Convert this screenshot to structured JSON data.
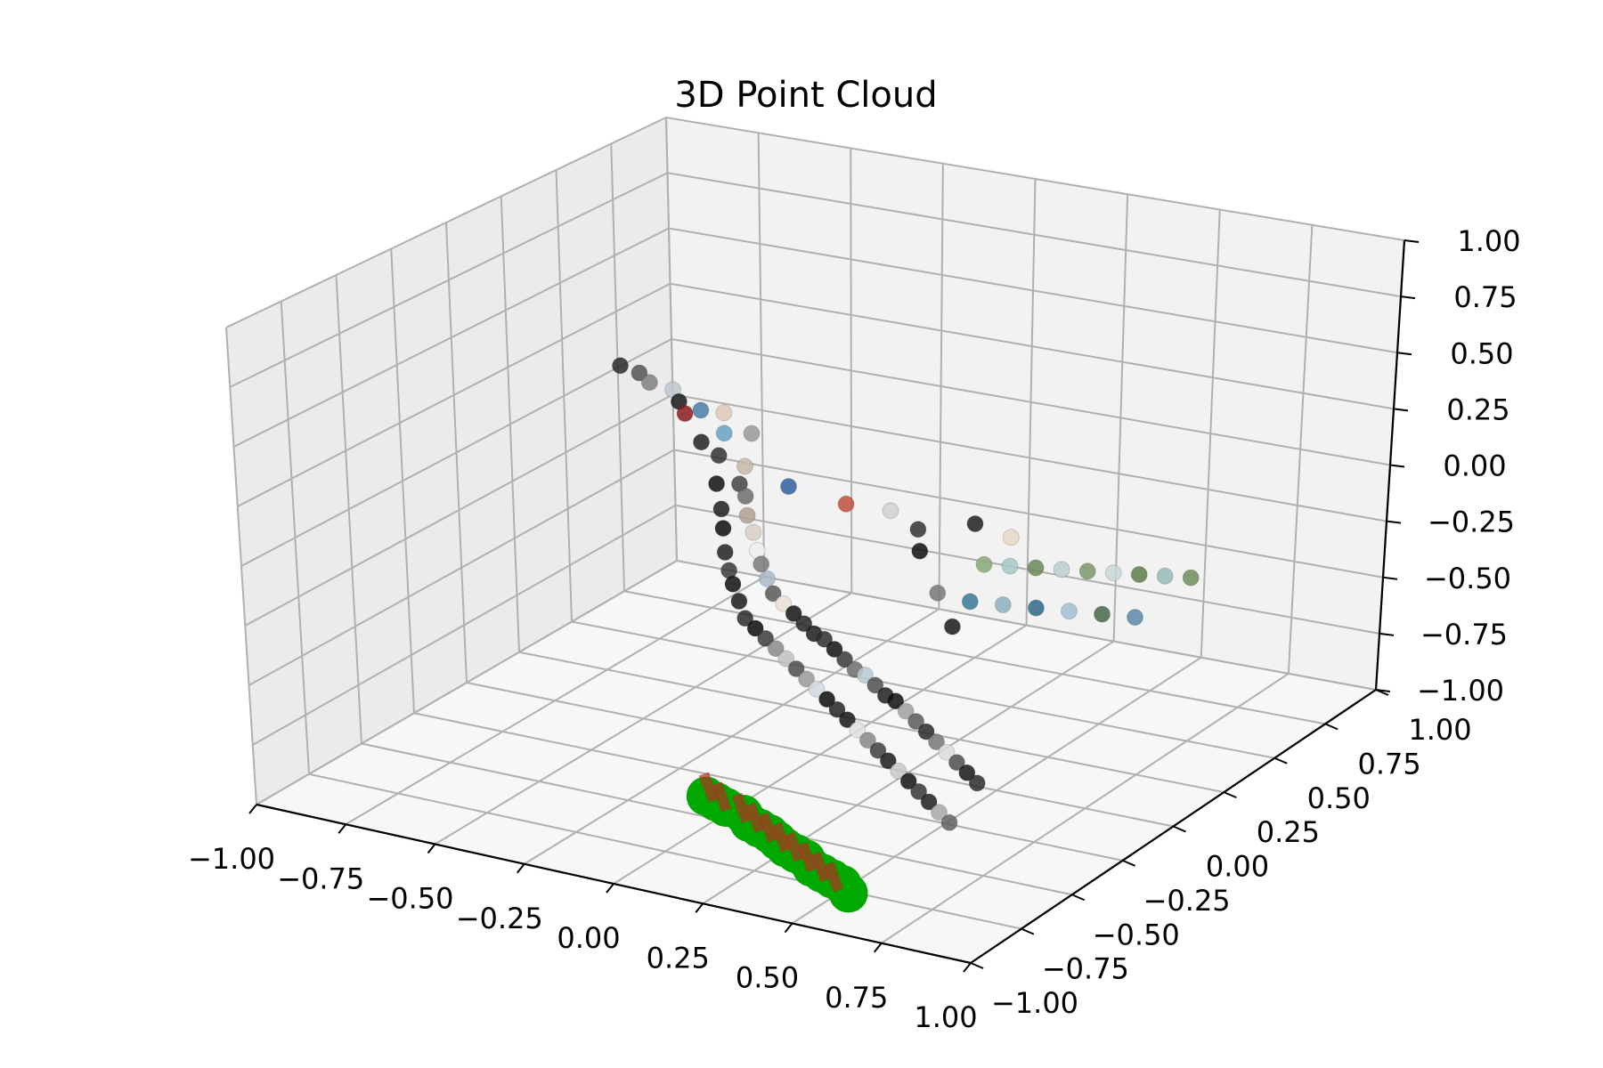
{
  "chart_data": {
    "type": "scatter",
    "projection": "3d",
    "title": "3D Point Cloud",
    "xlim": [
      -1.0,
      1.0
    ],
    "ylim": [
      -1.0,
      1.0
    ],
    "zlim": [
      -1.0,
      1.0
    ],
    "x_ticks": [
      "−1.00",
      "−0.75",
      "−0.50",
      "−0.25",
      "0.00",
      "0.25",
      "0.50",
      "0.75",
      "1.00"
    ],
    "y_ticks": [
      "−1.00",
      "−0.75",
      "−0.50",
      "−0.25",
      "0.00",
      "0.25",
      "0.50",
      "0.75",
      "1.00"
    ],
    "z_ticks": [
      "−1.00",
      "−0.75",
      "−0.50",
      "−0.25",
      "0.00",
      "0.25",
      "0.50",
      "0.75",
      "1.00"
    ],
    "grid": true,
    "colors": {
      "pane_left": "#ebebeb",
      "pane_back": "#f2f2f2",
      "pane_floor": "#f7f7f7",
      "grid": "#b0b0b0",
      "green_markers": "#00a800",
      "red_segments": "#b03020"
    },
    "series": [
      {
        "kind": "point-cloud",
        "points": [
          [
            -0.78,
            0.4,
            0.25,
            "#2b2b2b"
          ],
          [
            -0.74,
            0.42,
            0.22,
            "#555555"
          ],
          [
            -0.7,
            0.4,
            0.2,
            "#808080"
          ],
          [
            -0.66,
            0.44,
            0.16,
            "#c0c8d0"
          ],
          [
            -0.62,
            0.4,
            0.14,
            "#1a1a1a"
          ],
          [
            -0.58,
            0.36,
            0.12,
            "#8c1c1c"
          ],
          [
            -0.56,
            0.4,
            0.12,
            "#4a7ea8"
          ],
          [
            -0.52,
            0.44,
            0.1,
            "#e0c8b8"
          ],
          [
            -0.5,
            0.3,
            0.05,
            "#222222"
          ],
          [
            -0.46,
            0.34,
            0.08,
            "#6aa0c8"
          ],
          [
            -0.44,
            0.28,
            0.02,
            "#333333"
          ],
          [
            -0.42,
            0.4,
            0.06,
            "#999999"
          ],
          [
            -0.4,
            0.2,
            -0.05,
            "#111111"
          ],
          [
            -0.38,
            0.3,
            -0.02,
            "#c8b8a8"
          ],
          [
            -0.36,
            0.24,
            -0.06,
            "#444444"
          ],
          [
            -0.34,
            0.12,
            -0.1,
            "#1e1e1e"
          ],
          [
            -0.32,
            0.2,
            -0.08,
            "#6e6e6e"
          ],
          [
            -0.3,
            0.06,
            -0.14,
            "#0e0e0e"
          ],
          [
            -0.28,
            0.14,
            -0.12,
            "#b0a090"
          ],
          [
            -0.26,
            0.0,
            -0.2,
            "#222222"
          ],
          [
            -0.24,
            0.1,
            -0.16,
            "#d8d0c8"
          ],
          [
            -0.22,
            -0.05,
            -0.24,
            "#3a3a3a"
          ],
          [
            -0.2,
            0.05,
            -0.2,
            "#f0f0f0"
          ],
          [
            -0.18,
            -0.1,
            -0.26,
            "#101010"
          ],
          [
            -0.16,
            0.0,
            -0.22,
            "#7a7a7a"
          ],
          [
            -0.14,
            -0.14,
            -0.3,
            "#1a1a1a"
          ],
          [
            -0.12,
            -0.04,
            -0.25,
            "#a8b8c8"
          ],
          [
            -0.1,
            -0.18,
            -0.34,
            "#2a2a2a"
          ],
          [
            -0.08,
            -0.08,
            -0.28,
            "#585858"
          ],
          [
            -0.06,
            -0.2,
            -0.36,
            "#0a0a0a"
          ],
          [
            -0.04,
            -0.1,
            -0.3,
            "#e8e0d8"
          ],
          [
            -0.02,
            -0.22,
            -0.38,
            "#3c3c3c"
          ],
          [
            0.0,
            -0.12,
            -0.32,
            "#141414"
          ],
          [
            0.02,
            -0.24,
            -0.4,
            "#8a8a8a"
          ],
          [
            0.04,
            -0.14,
            -0.34,
            "#262626"
          ],
          [
            0.06,
            -0.26,
            -0.42,
            "#c0c0c0"
          ],
          [
            0.08,
            -0.16,
            -0.36,
            "#1c1c1c"
          ],
          [
            0.1,
            -0.28,
            -0.44,
            "#4c4c4c"
          ],
          [
            0.12,
            -0.18,
            -0.36,
            "#2e2e2e"
          ],
          [
            0.14,
            -0.3,
            -0.46,
            "#9a9a9a"
          ],
          [
            0.16,
            -0.2,
            -0.38,
            "#121212"
          ],
          [
            0.18,
            -0.32,
            -0.48,
            "#d0d8e0"
          ],
          [
            0.2,
            -0.22,
            -0.4,
            "#383838"
          ],
          [
            0.22,
            -0.34,
            -0.5,
            "#0c0c0c"
          ],
          [
            0.24,
            -0.24,
            -0.42,
            "#6c6c6c"
          ],
          [
            0.26,
            -0.36,
            -0.52,
            "#242424"
          ],
          [
            0.28,
            -0.26,
            -0.42,
            "#b8c8d0"
          ],
          [
            0.3,
            -0.38,
            -0.54,
            "#161616"
          ],
          [
            0.32,
            -0.28,
            -0.44,
            "#505050"
          ],
          [
            0.34,
            -0.4,
            -0.56,
            "#e0e0e0"
          ],
          [
            0.36,
            -0.3,
            -0.46,
            "#202020"
          ],
          [
            0.38,
            -0.42,
            -0.58,
            "#888888"
          ],
          [
            0.4,
            -0.32,
            -0.46,
            "#0f0f0f"
          ],
          [
            0.42,
            -0.44,
            -0.6,
            "#3e3e3e"
          ],
          [
            0.44,
            -0.34,
            -0.48,
            "#a0a0a0"
          ],
          [
            0.46,
            -0.46,
            -0.62,
            "#1b1b1b"
          ],
          [
            0.48,
            -0.36,
            -0.5,
            "#5a5a5a"
          ],
          [
            0.5,
            -0.48,
            -0.64,
            "#c8c8c8"
          ],
          [
            0.52,
            -0.38,
            -0.52,
            "#292929"
          ],
          [
            0.54,
            -0.5,
            -0.66,
            "#131313"
          ],
          [
            0.56,
            -0.4,
            -0.54,
            "#777777"
          ],
          [
            0.58,
            -0.52,
            -0.68,
            "#363636"
          ],
          [
            0.6,
            -0.42,
            -0.56,
            "#dcdcdc"
          ],
          [
            0.62,
            -0.54,
            -0.7,
            "#1f1f1f"
          ],
          [
            0.64,
            -0.44,
            -0.58,
            "#4e4e4e"
          ],
          [
            0.66,
            -0.56,
            -0.72,
            "#a8a8a8"
          ],
          [
            0.68,
            -0.46,
            -0.6,
            "#171717"
          ],
          [
            0.7,
            -0.58,
            -0.74,
            "#626262"
          ],
          [
            0.72,
            -0.48,
            -0.62,
            "#2c2c2c"
          ],
          [
            0.4,
            0.1,
            -0.1,
            "#8aa878"
          ],
          [
            0.46,
            0.12,
            -0.1,
            "#a8c8c8"
          ],
          [
            0.52,
            0.14,
            -0.1,
            "#6a8858"
          ],
          [
            0.58,
            0.16,
            -0.1,
            "#b8d0d0"
          ],
          [
            0.64,
            0.18,
            -0.1,
            "#7a9868"
          ],
          [
            0.7,
            0.2,
            -0.1,
            "#c8d8d8"
          ],
          [
            0.76,
            0.22,
            -0.1,
            "#5e7e4e"
          ],
          [
            0.82,
            0.24,
            -0.1,
            "#98b8b8"
          ],
          [
            0.88,
            0.26,
            -0.1,
            "#6e8e5e"
          ],
          [
            0.42,
            0.0,
            -0.2,
            "#3a7898"
          ],
          [
            0.5,
            0.02,
            -0.2,
            "#90b0c0"
          ],
          [
            0.58,
            0.04,
            -0.2,
            "#2e6888"
          ],
          [
            0.66,
            0.06,
            -0.2,
            "#a0c0d0"
          ],
          [
            0.74,
            0.08,
            -0.2,
            "#486848"
          ],
          [
            0.82,
            0.1,
            -0.2,
            "#5a8aa8"
          ],
          [
            0.2,
            0.4,
            -0.15,
            "#202020"
          ],
          [
            0.3,
            0.4,
            -0.18,
            "#e8d8c8"
          ],
          [
            0.1,
            0.3,
            -0.15,
            "#333333"
          ],
          [
            -0.1,
            0.3,
            -0.1,
            "#c05040"
          ],
          [
            0.0,
            0.34,
            -0.12,
            "#d0d0d0"
          ],
          [
            0.14,
            0.24,
            -0.2,
            "#101010"
          ],
          [
            0.26,
            0.12,
            -0.28,
            "#787878"
          ],
          [
            0.36,
            0.02,
            -0.34,
            "#1a1a1a"
          ],
          [
            -0.2,
            0.2,
            0.0,
            "#3060a0"
          ]
        ]
      },
      {
        "kind": "ground-markers",
        "color": "#00a800",
        "points": [
          [
            -0.1,
            -0.38,
            -1.0
          ],
          [
            -0.06,
            -0.4,
            -1.0
          ],
          [
            -0.02,
            -0.42,
            -1.0
          ],
          [
            0.04,
            -0.44,
            -1.0
          ],
          [
            0.08,
            -0.48,
            -1.0
          ],
          [
            0.12,
            -0.5,
            -1.0
          ],
          [
            0.16,
            -0.52,
            -1.0
          ],
          [
            0.2,
            -0.55,
            -1.0
          ],
          [
            0.24,
            -0.58,
            -1.0
          ],
          [
            0.28,
            -0.6,
            -1.0
          ],
          [
            0.32,
            -0.62,
            -1.0
          ],
          [
            0.36,
            -0.66,
            -1.0
          ],
          [
            0.4,
            -0.68,
            -1.0
          ],
          [
            0.44,
            -0.7,
            -1.0
          ],
          [
            0.48,
            -0.72,
            -1.0
          ],
          [
            0.52,
            -0.76,
            -1.0
          ]
        ]
      },
      {
        "kind": "ground-segments",
        "color": "#b03020",
        "points": [
          [
            -0.09,
            -0.37,
            -1.0
          ],
          [
            -0.03,
            -0.41,
            -1.0
          ],
          [
            0.05,
            -0.45,
            -1.0
          ],
          [
            0.11,
            -0.49,
            -1.0
          ],
          [
            0.17,
            -0.53,
            -1.0
          ],
          [
            0.23,
            -0.57,
            -1.0
          ],
          [
            0.29,
            -0.61,
            -1.0
          ],
          [
            0.35,
            -0.65,
            -1.0
          ],
          [
            0.41,
            -0.69,
            -1.0
          ],
          [
            0.47,
            -0.73,
            -1.0
          ]
        ]
      }
    ]
  }
}
